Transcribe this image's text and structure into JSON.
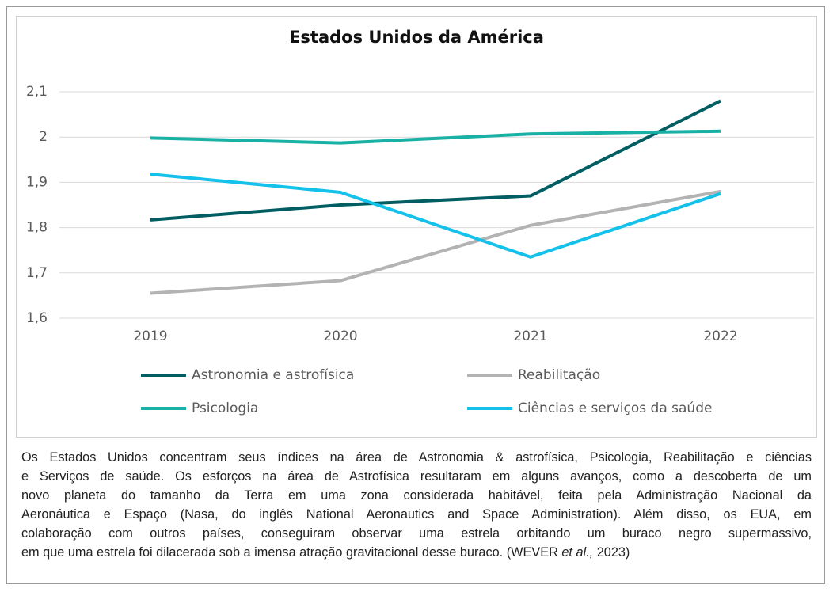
{
  "chart_data": {
    "type": "line",
    "title": "Estados Unidos da América",
    "categories": [
      "2019",
      "2020",
      "2021",
      "2022"
    ],
    "series": [
      {
        "name": "Astronomia e astrofísica",
        "color": "#005e63",
        "values": [
          1.817,
          1.85,
          1.87,
          2.08
        ]
      },
      {
        "name": "Psicologia",
        "color": "#19b0a5",
        "values": [
          1.998,
          1.987,
          2.007,
          2.013
        ]
      },
      {
        "name": "Reabilitação",
        "color": "#b3b3b3",
        "values": [
          1.655,
          1.683,
          1.805,
          1.88
        ]
      },
      {
        "name": "Ciências e serviços da saúde",
        "color": "#13c1ea",
        "values": [
          1.918,
          1.878,
          1.735,
          1.875
        ]
      }
    ],
    "ylim": [
      1.6,
      2.1
    ],
    "yticks": [
      {
        "value": 1.6,
        "label": "1,6"
      },
      {
        "value": 1.7,
        "label": "1,7"
      },
      {
        "value": 1.8,
        "label": "1,8"
      },
      {
        "value": 1.9,
        "label": "1,9"
      },
      2,
      {
        "value": 2.1,
        "label": "2,1"
      }
    ],
    "grid": true
  },
  "caption": {
    "lines": [
      "Os Estados Unidos concentram seus índices na área de Astronomia & astrofísica, Psicologia, Reabilitação e ciências",
      "e Serviços de saúde. Os esforços na área de Astrofísica resultaram em alguns avanços, como a descoberta de um",
      "novo planeta do tamanho da Terra em uma zona considerada habitável, feita pela Administração Nacional da",
      "Aeronáutica e Espaço (Nasa, do inglês National Aeronautics and Space Administration). Além disso, os EUA, em",
      "colaboração com outros países, conseguiram observar uma estrela orbitando um buraco negro supermassivo,"
    ],
    "last_line": [
      "em que uma estrela foi dilacerada sob a imensa atração gravitacional desse buraco. (WEVER ",
      "et al.,",
      " 2023)"
    ]
  }
}
